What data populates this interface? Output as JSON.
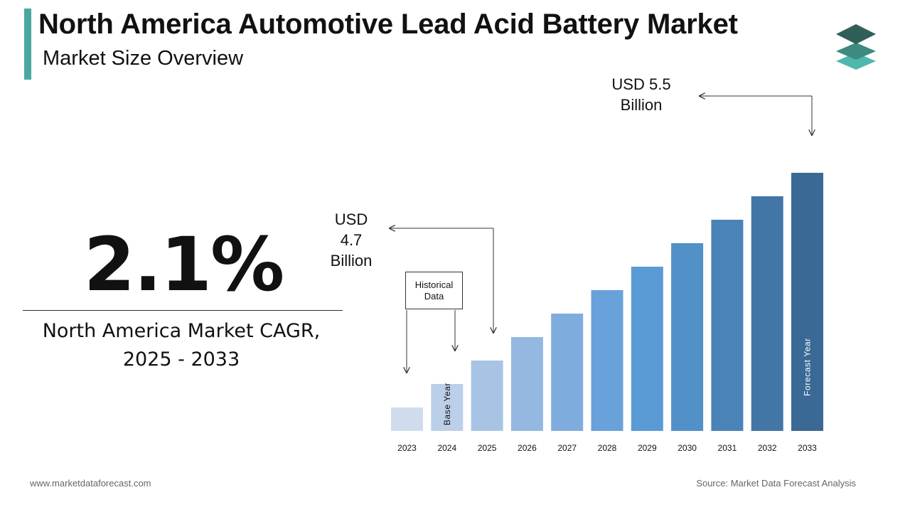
{
  "header": {
    "title": "North America Automotive Lead Acid Battery Market",
    "subtitle": "Market Size Overview"
  },
  "cagr": {
    "value": "2.1%",
    "caption_line1": "North America Market CAGR,",
    "caption_line2": "2025 - 2033"
  },
  "callouts": {
    "end_line1": "USD 5.5",
    "end_line2": "Billion",
    "mid_line1": "USD",
    "mid_line2": "4.7",
    "mid_line3": "Billion",
    "historical_line1": "Historical",
    "historical_line2": "Data"
  },
  "footer": {
    "website": "www.marketdataforecast.com",
    "source": "Source: Market Data Forecast Analysis"
  },
  "colors": {
    "accent": "#4aa8a0",
    "logo_dark": "#2f5f57",
    "logo_mid": "#3d8a80",
    "logo_light": "#4fb8ae"
  },
  "chart_data": {
    "type": "bar",
    "categories": [
      "2023",
      "2024",
      "2025",
      "2026",
      "2027",
      "2028",
      "2029",
      "2030",
      "2031",
      "2032",
      "2033"
    ],
    "values": [
      1,
      2,
      3,
      4,
      5,
      6,
      7,
      8,
      9,
      10,
      11
    ],
    "colors": [
      "#d0dcee",
      "#bccfe8",
      "#a8c4e5",
      "#94b8e0",
      "#7eaddd",
      "#69a1da",
      "#5b9bd5",
      "#5290c8",
      "#4a83b7",
      "#4276a6",
      "#3a6995"
    ],
    "bar_labels": {
      "2024": "Base Year",
      "2033": "Forecast Year"
    },
    "y_axis_shown": false,
    "grid": false,
    "legend": "none"
  }
}
